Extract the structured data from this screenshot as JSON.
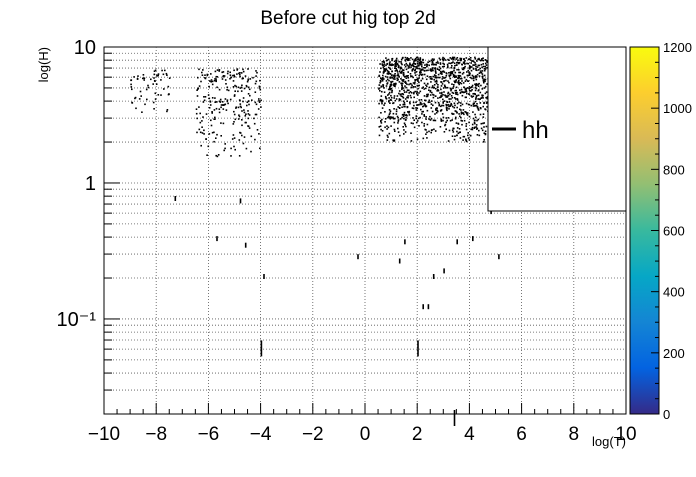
{
  "chart_data": {
    "type": "heatmap",
    "title": "Before cut hig top 2d",
    "xlabel": "log(T)",
    "ylabel": "log(H)",
    "xlim": [
      -10,
      10
    ],
    "ylim": [
      0.02,
      10
    ],
    "y_scale": "log",
    "grid": "dotted",
    "x_ticks": [
      {
        "v": -10,
        "label": "−10"
      },
      {
        "v": -8,
        "label": "−8"
      },
      {
        "v": -6,
        "label": "−6"
      },
      {
        "v": -4,
        "label": "−4"
      },
      {
        "v": -2,
        "label": "−2"
      },
      {
        "v": 0,
        "label": "0"
      },
      {
        "v": 2,
        "label": "2"
      },
      {
        "v": 4,
        "label": "4"
      },
      {
        "v": 6,
        "label": "6"
      },
      {
        "v": 8,
        "label": "8"
      },
      {
        "v": 10,
        "label": "10"
      }
    ],
    "y_ticks": [
      {
        "v": 10,
        "label": "10"
      },
      {
        "v": 1,
        "label": "1"
      },
      {
        "v": 0.1,
        "label": "10⁻¹"
      }
    ],
    "colorbar": {
      "min": 0,
      "max": 1200,
      "ticks": [
        "0",
        "200",
        "400",
        "600",
        "800",
        "1000",
        "1200"
      ],
      "palette": "parula",
      "colors": [
        "#352a87",
        "#0363e1",
        "#1485d4",
        "#06a7c6",
        "#38b99e",
        "#92bf73",
        "#d9ba56",
        "#fcce2e",
        "#f9fb0e"
      ]
    },
    "legend": {
      "position": "top-right",
      "entries": [
        {
          "label": "hh",
          "color": "#000000"
        }
      ]
    },
    "cluster_regions": [
      {
        "x": [
          -6.5,
          -4.0
        ],
        "y": [
          1.5,
          7.0
        ],
        "density": "medium"
      },
      {
        "x": [
          0.5,
          6.0
        ],
        "y": [
          2.0,
          8.5
        ],
        "density": "high"
      },
      {
        "x": [
          -9.0,
          -7.5
        ],
        "y": [
          3.0,
          7.0
        ],
        "density": "low"
      }
    ],
    "isolated_points": [
      {
        "x": -4.0,
        "y": 0.065
      },
      {
        "x": 2.0,
        "y": 0.065
      },
      {
        "x": 2.2,
        "y": 0.12
      },
      {
        "x": 2.4,
        "y": 0.12
      },
      {
        "x": 2.6,
        "y": 0.2
      },
      {
        "x": 3.0,
        "y": 0.22
      },
      {
        "x": 1.3,
        "y": 0.26
      },
      {
        "x": -0.3,
        "y": 0.28
      },
      {
        "x": -3.9,
        "y": 0.2
      },
      {
        "x": -4.6,
        "y": 0.34
      },
      {
        "x": -5.7,
        "y": 0.38
      },
      {
        "x": 3.5,
        "y": 0.36
      },
      {
        "x": 4.1,
        "y": 0.38
      },
      {
        "x": -7.3,
        "y": 0.75
      },
      {
        "x": -4.8,
        "y": 0.72
      },
      {
        "x": 1.5,
        "y": 0.36
      },
      {
        "x": 4.8,
        "y": 0.6
      },
      {
        "x": 5.1,
        "y": 0.28
      },
      {
        "x": 3.4,
        "y": 0.02
      }
    ]
  }
}
